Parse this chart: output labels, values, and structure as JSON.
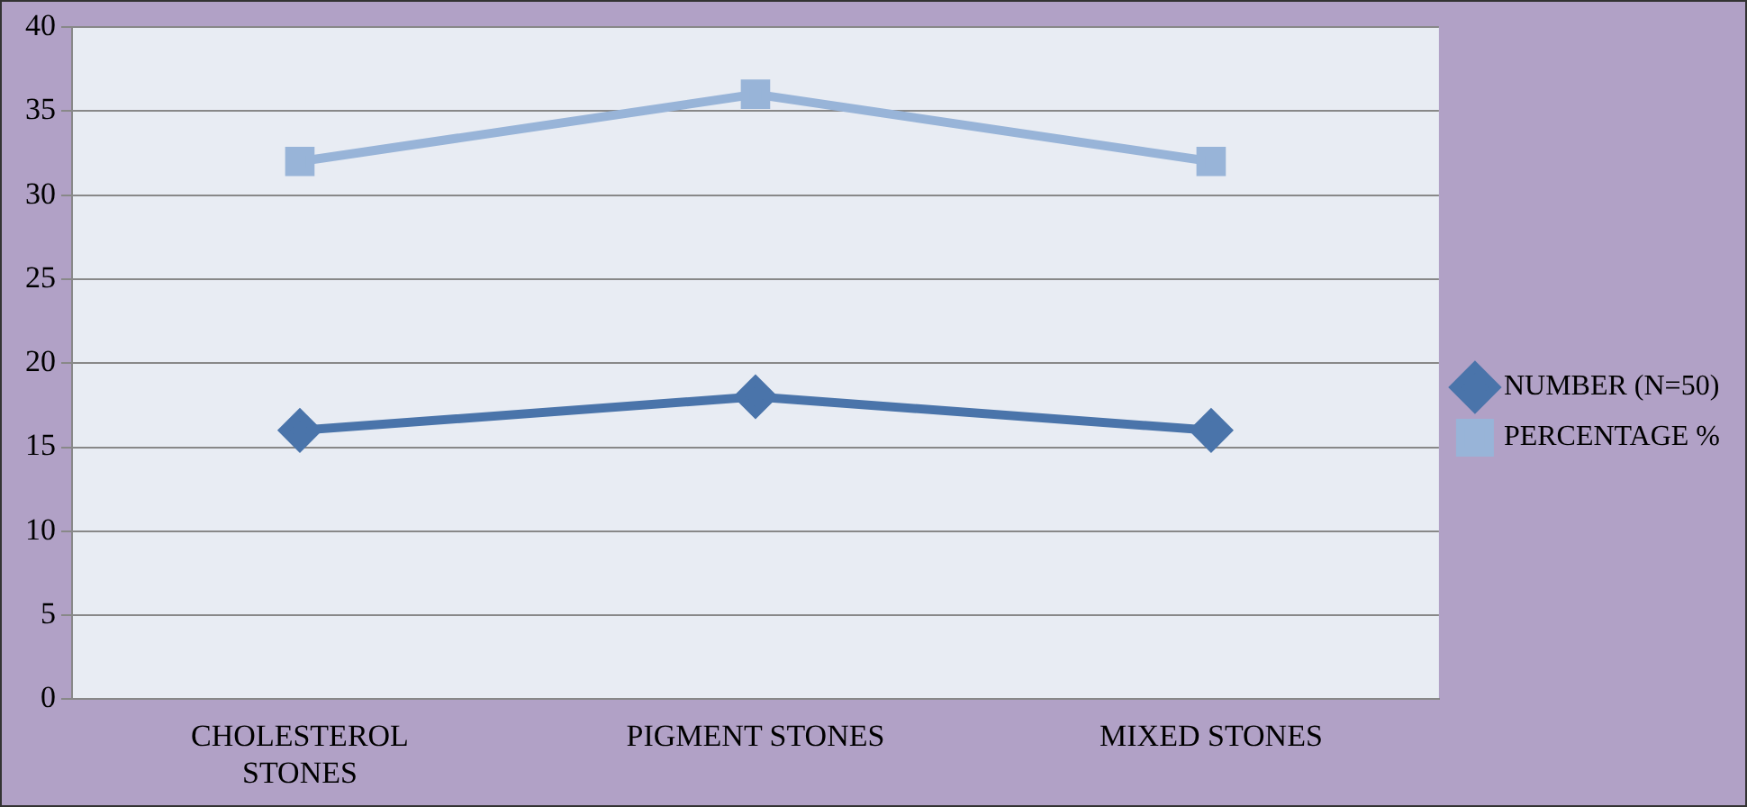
{
  "chart_data": {
    "type": "line",
    "categories": [
      "CHOLESTEROL STONES",
      "PIGMENT STONES",
      "MIXED STONES"
    ],
    "series": [
      {
        "name": "NUMBER (N=50)",
        "color": "#4a74aa",
        "values": [
          16,
          18,
          16
        ],
        "marker": "diamond"
      },
      {
        "name": "PERCENTAGE %",
        "color": "#98b4d8",
        "values": [
          32,
          36,
          32
        ],
        "marker": "square"
      }
    ],
    "ylim": [
      0,
      40
    ],
    "yticks": [
      0,
      5,
      10,
      15,
      20,
      25,
      30,
      35,
      40
    ],
    "grid": "y",
    "legend": "right",
    "line_style": "solid"
  }
}
